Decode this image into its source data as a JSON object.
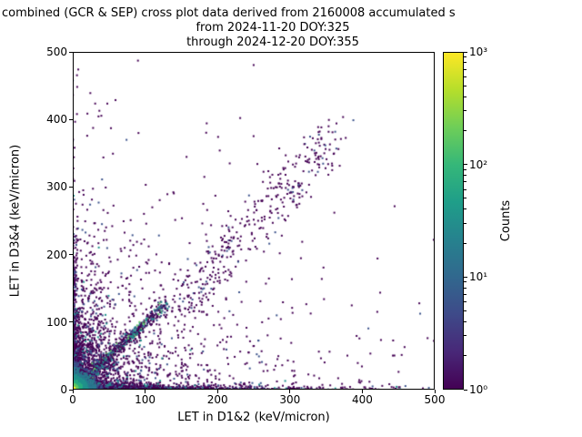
{
  "chart_data": {
    "type": "scatter",
    "title_lines": [
      "combined (GCR & SEP) cross plot data derived from 2160008 accumulated s",
      "from 2024-11-20 DOY:325",
      "through 2024-12-20 DOY:355"
    ],
    "xlabel": "LET in D1&2 (keV/micron)",
    "ylabel": "LET in D3&4 (keV/micron)",
    "xlim": [
      0,
      500
    ],
    "ylim": [
      0,
      500
    ],
    "xticks": [
      0,
      100,
      200,
      300,
      400,
      500
    ],
    "yticks": [
      0,
      100,
      200,
      300,
      400,
      500
    ],
    "grid": false,
    "marker_px": 2,
    "seed": 1337,
    "colormap": "viridis",
    "colormap_stops": [
      "#440154",
      "#482878",
      "#3e4a89",
      "#31688e",
      "#26828e",
      "#1f9e89",
      "#35b779",
      "#6ece58",
      "#b5de2b",
      "#fde725"
    ],
    "heat_stops": [
      "#440154",
      "#3b528b",
      "#2a788e",
      "#21918c",
      "#27ad81",
      "#5ec962",
      "#fde725"
    ],
    "colorbar": {
      "label": "Counts",
      "scale": "log",
      "min_exp": 0,
      "max_exp": 3,
      "tick_exponents": [
        0,
        1,
        2,
        3
      ],
      "tick_labels": [
        "10⁰",
        "10¹",
        "10²",
        "10³"
      ]
    },
    "clusters": [
      {
        "name": "sparse-scatter",
        "type": "exp2d",
        "n": 800,
        "mean_x": 150,
        "mean_y": 110,
        "max": 500,
        "colors": [
          [
            "#440154",
            0.93
          ],
          [
            "#3b528b",
            0.07
          ]
        ]
      },
      {
        "name": "lower-left-cloud",
        "type": "exp2d",
        "n": 1700,
        "mean_x": 28,
        "mean_y": 45,
        "max": 280,
        "colors": [
          [
            "#440154",
            0.78
          ],
          [
            "#3b528b",
            0.16
          ],
          [
            "#21918c",
            0.06
          ]
        ]
      },
      {
        "name": "y-axis-band",
        "type": "band",
        "axis": "y",
        "n": 650,
        "mean_len": 85,
        "max_len": 490,
        "mean_off": 2.5,
        "colors": [
          [
            "#440154",
            0.75
          ],
          [
            "#3b528b",
            0.18
          ],
          [
            "#21918c",
            0.07
          ]
        ]
      },
      {
        "name": "x-axis-band",
        "type": "band",
        "axis": "x",
        "n": 1300,
        "mean_len": 110,
        "max_len": 498,
        "mean_off": 2.5,
        "colors": [
          [
            "#440154",
            0.72
          ],
          [
            "#3b528b",
            0.19
          ],
          [
            "#21918c",
            0.09
          ]
        ]
      },
      {
        "name": "upper-diagonal",
        "type": "diag",
        "n": 360,
        "x0": 135,
        "y0": 115,
        "x1": 365,
        "y1": 380,
        "spread": 16,
        "taper": false,
        "colors": [
          [
            "#440154",
            0.86
          ],
          [
            "#3b528b",
            0.14
          ]
        ]
      },
      {
        "name": "low-diagonal",
        "type": "diag",
        "n": 850,
        "x0": 0,
        "y0": 0,
        "x1": 128,
        "y1": 126,
        "spread": 3.5,
        "taper": true,
        "colors": [
          [
            "#440154",
            0.5
          ],
          [
            "#3b528b",
            0.26
          ],
          [
            "#21918c",
            0.17
          ],
          [
            "#5ec962",
            0.07
          ]
        ]
      },
      {
        "name": "origin-core",
        "type": "exp2d",
        "n": 3800,
        "mean_x": 6,
        "mean_y": 6,
        "max": 70,
        "color_by": "origin_heat",
        "heat_scale": 26
      }
    ]
  }
}
